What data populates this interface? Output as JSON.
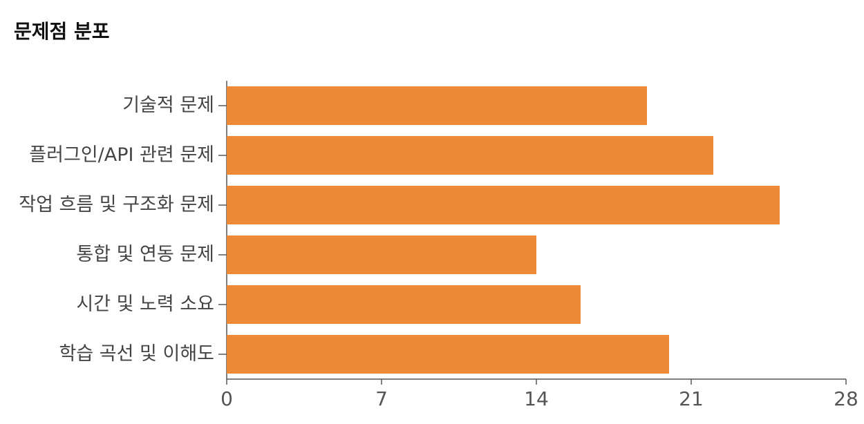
{
  "chart_data": {
    "type": "bar",
    "orientation": "horizontal",
    "title": "문제점 분포",
    "categories": [
      "기술적 문제",
      "플러그인/API 관련 문제",
      "작업 흐름 및 구조화 문제",
      "통합 및 연동 문제",
      "시간 및 노력 소요",
      "학습 곡선 및 이해도"
    ],
    "values": [
      19,
      22,
      25,
      14,
      16,
      20
    ],
    "color": "#ec8a3a",
    "xlim": [
      0,
      28
    ],
    "xticks": [
      0,
      7,
      14,
      21,
      28
    ]
  }
}
